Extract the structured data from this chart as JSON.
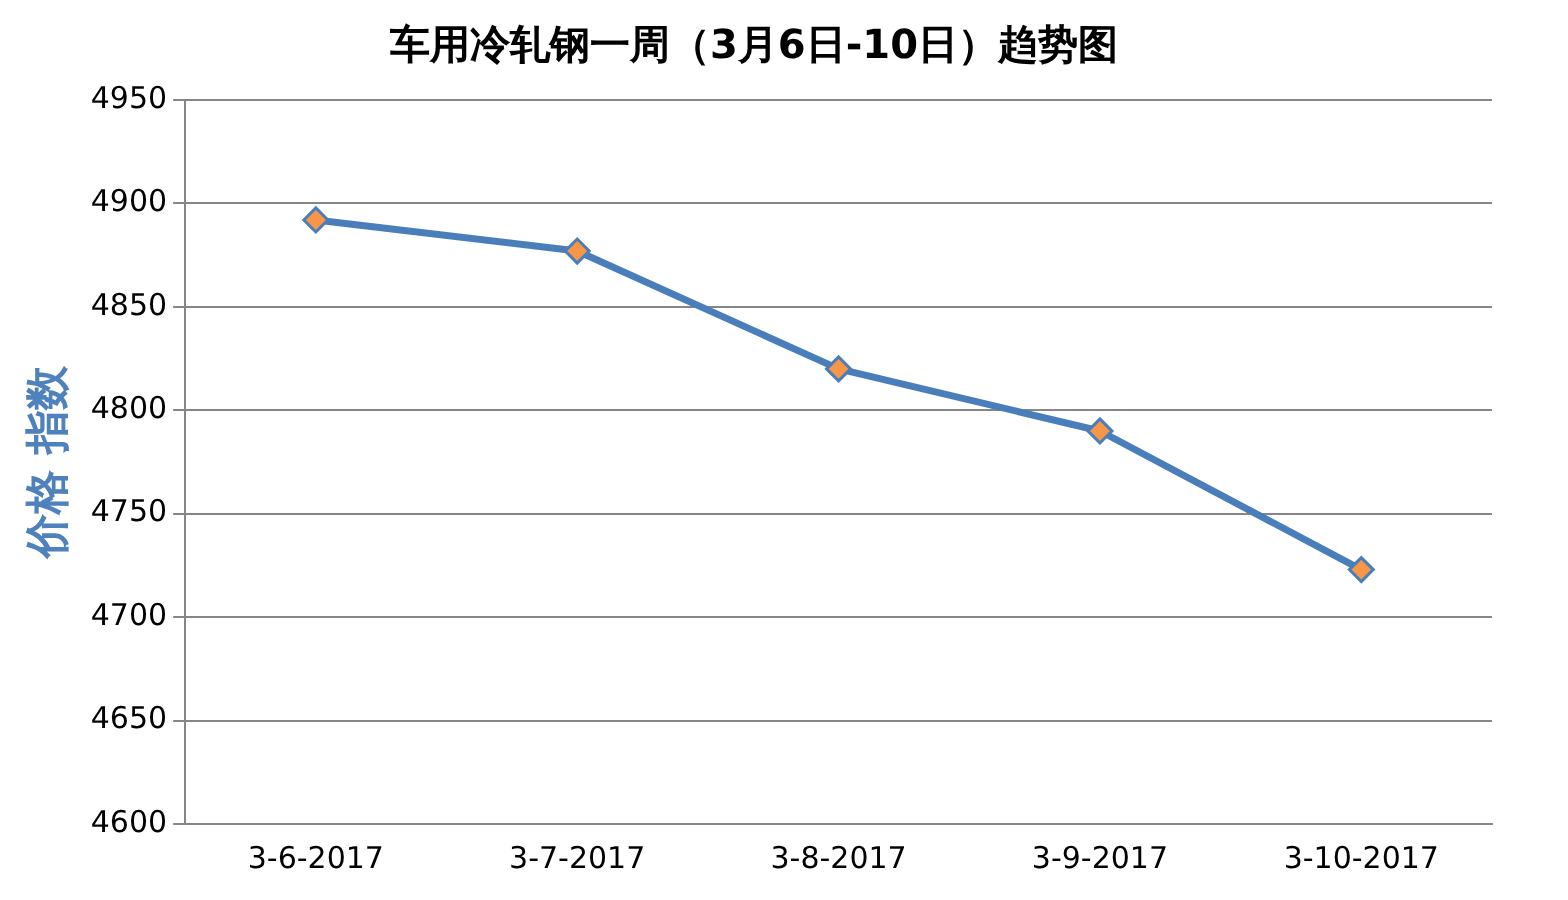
{
  "chart_data": {
    "type": "line",
    "title": "车用冷轧钢一周（3月6日-10日）趋势图",
    "ylabel": "价格 指数",
    "categories": [
      "3-6-2017",
      "3-7-2017",
      "3-8-2017",
      "3-9-2017",
      "3-10-2017"
    ],
    "series": [
      {
        "color": "#4a7ebb",
        "colors": [
          "#f79646",
          "#f79646",
          "#f79646",
          "#f79646",
          "#f79646"
        ],
        "values": [
          4892,
          4877,
          4820,
          4790,
          4723
        ]
      }
    ],
    "ylim": [
      4600,
      4950
    ],
    "yticks": [
      4600,
      4650,
      4700,
      4750,
      4800,
      4850,
      4900,
      4950
    ],
    "grid": "y",
    "marker": "diamond",
    "line_style": "solid",
    "legend": false
  }
}
